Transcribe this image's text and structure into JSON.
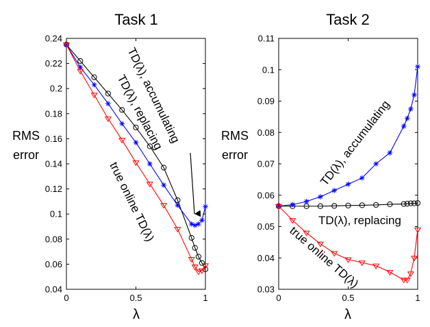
{
  "chart_data": [
    {
      "type": "line",
      "title": "Task 1",
      "xlabel": "λ",
      "ylabel": [
        "RMS",
        "error"
      ],
      "xlim": [
        0,
        1
      ],
      "ylim": [
        0.04,
        0.24
      ],
      "xticks": [
        0,
        0.5,
        1
      ],
      "xtick_labels": [
        "0",
        "0.5",
        "1"
      ],
      "yticks": [
        0.04,
        0.06,
        0.08,
        0.1,
        0.12,
        0.14,
        0.16,
        0.18,
        0.2,
        0.22,
        0.24
      ],
      "ytick_labels": [
        "0.04",
        "0.06",
        "0.08",
        "0.1",
        "0.12",
        "0.14",
        "0.16",
        "0.18",
        "0.2",
        "0.22",
        "0.24"
      ],
      "grid": false,
      "series": [
        {
          "name": "TD(λ), replacing",
          "color": "#000000",
          "marker": "circle",
          "x": [
            0,
            0.1,
            0.2,
            0.3,
            0.4,
            0.5,
            0.6,
            0.7,
            0.8,
            0.9,
            0.925,
            0.95,
            0.975,
            1.0
          ],
          "y": [
            0.235,
            0.222,
            0.209,
            0.196,
            0.183,
            0.169,
            0.154,
            0.137,
            0.111,
            0.081,
            0.073,
            0.066,
            0.061,
            0.056
          ]
        },
        {
          "name": "TD(λ), accumulating",
          "color": "#0000ff",
          "marker": "star",
          "x": [
            0,
            0.1,
            0.2,
            0.3,
            0.4,
            0.5,
            0.6,
            0.7,
            0.8,
            0.9,
            0.925,
            0.95,
            0.975,
            1.0
          ],
          "y": [
            0.235,
            0.217,
            0.203,
            0.188,
            0.172,
            0.157,
            0.14,
            0.123,
            0.107,
            0.092,
            0.091,
            0.092,
            0.095,
            0.106
          ]
        },
        {
          "name": "true online TD(λ)",
          "color": "#ff0000",
          "marker": "triangle-down",
          "x": [
            0,
            0.1,
            0.2,
            0.3,
            0.4,
            0.5,
            0.6,
            0.7,
            0.8,
            0.9,
            0.925,
            0.95,
            0.975,
            1.0
          ],
          "y": [
            0.235,
            0.214,
            0.195,
            0.176,
            0.159,
            0.141,
            0.124,
            0.107,
            0.088,
            0.064,
            0.058,
            0.054,
            0.055,
            0.059
          ]
        }
      ],
      "annotations": [
        {
          "text": "TD(λ), accumulating"
        },
        {
          "text": "TD(λ), replacing"
        },
        {
          "text": "true online TD(λ)"
        }
      ]
    },
    {
      "type": "line",
      "title": "Task 2",
      "xlabel": "λ",
      "ylabel": [
        "RMS",
        "error"
      ],
      "xlim": [
        0,
        1
      ],
      "ylim": [
        0.03,
        0.11
      ],
      "xticks": [
        0,
        0.5,
        1
      ],
      "xtick_labels": [
        "0",
        "0.5",
        "1"
      ],
      "yticks": [
        0.03,
        0.04,
        0.05,
        0.06,
        0.07,
        0.08,
        0.09,
        0.1,
        0.11
      ],
      "ytick_labels": [
        "0.03",
        "0.04",
        "0.05",
        "0.06",
        "0.07",
        "0.08",
        "0.09",
        "0.1",
        "0.11"
      ],
      "grid": false,
      "series": [
        {
          "name": "TD(λ), replacing",
          "color": "#000000",
          "marker": "circle",
          "x": [
            0,
            0.1,
            0.2,
            0.3,
            0.4,
            0.5,
            0.6,
            0.7,
            0.8,
            0.9,
            0.925,
            0.95,
            0.975,
            1.0
          ],
          "y": [
            0.0565,
            0.0565,
            0.0565,
            0.0565,
            0.0566,
            0.0567,
            0.0568,
            0.0569,
            0.0571,
            0.0572,
            0.0573,
            0.0574,
            0.0574,
            0.0575
          ]
        },
        {
          "name": "TD(λ), accumulating",
          "color": "#0000ff",
          "marker": "star",
          "x": [
            0,
            0.1,
            0.2,
            0.3,
            0.4,
            0.5,
            0.6,
            0.7,
            0.8,
            0.9,
            0.925,
            0.95,
            0.975,
            1.0
          ],
          "y": [
            0.0565,
            0.057,
            0.058,
            0.0595,
            0.0615,
            0.0635,
            0.0655,
            0.07,
            0.0735,
            0.082,
            0.0845,
            0.0875,
            0.092,
            0.101
          ]
        },
        {
          "name": "true online TD(λ)",
          "color": "#ff0000",
          "marker": "triangle-down",
          "x": [
            0,
            0.1,
            0.2,
            0.3,
            0.4,
            0.5,
            0.6,
            0.7,
            0.8,
            0.9,
            0.925,
            0.95,
            0.975,
            1.0
          ],
          "y": [
            0.0565,
            0.052,
            0.048,
            0.0445,
            0.0415,
            0.0395,
            0.0385,
            0.0375,
            0.0355,
            0.033,
            0.033,
            0.035,
            0.04,
            0.049
          ]
        }
      ],
      "annotations": [
        {
          "text": "TD(λ), accumulating"
        },
        {
          "text": "TD(λ), replacing"
        },
        {
          "text": "true online TD(λ)"
        }
      ]
    }
  ]
}
